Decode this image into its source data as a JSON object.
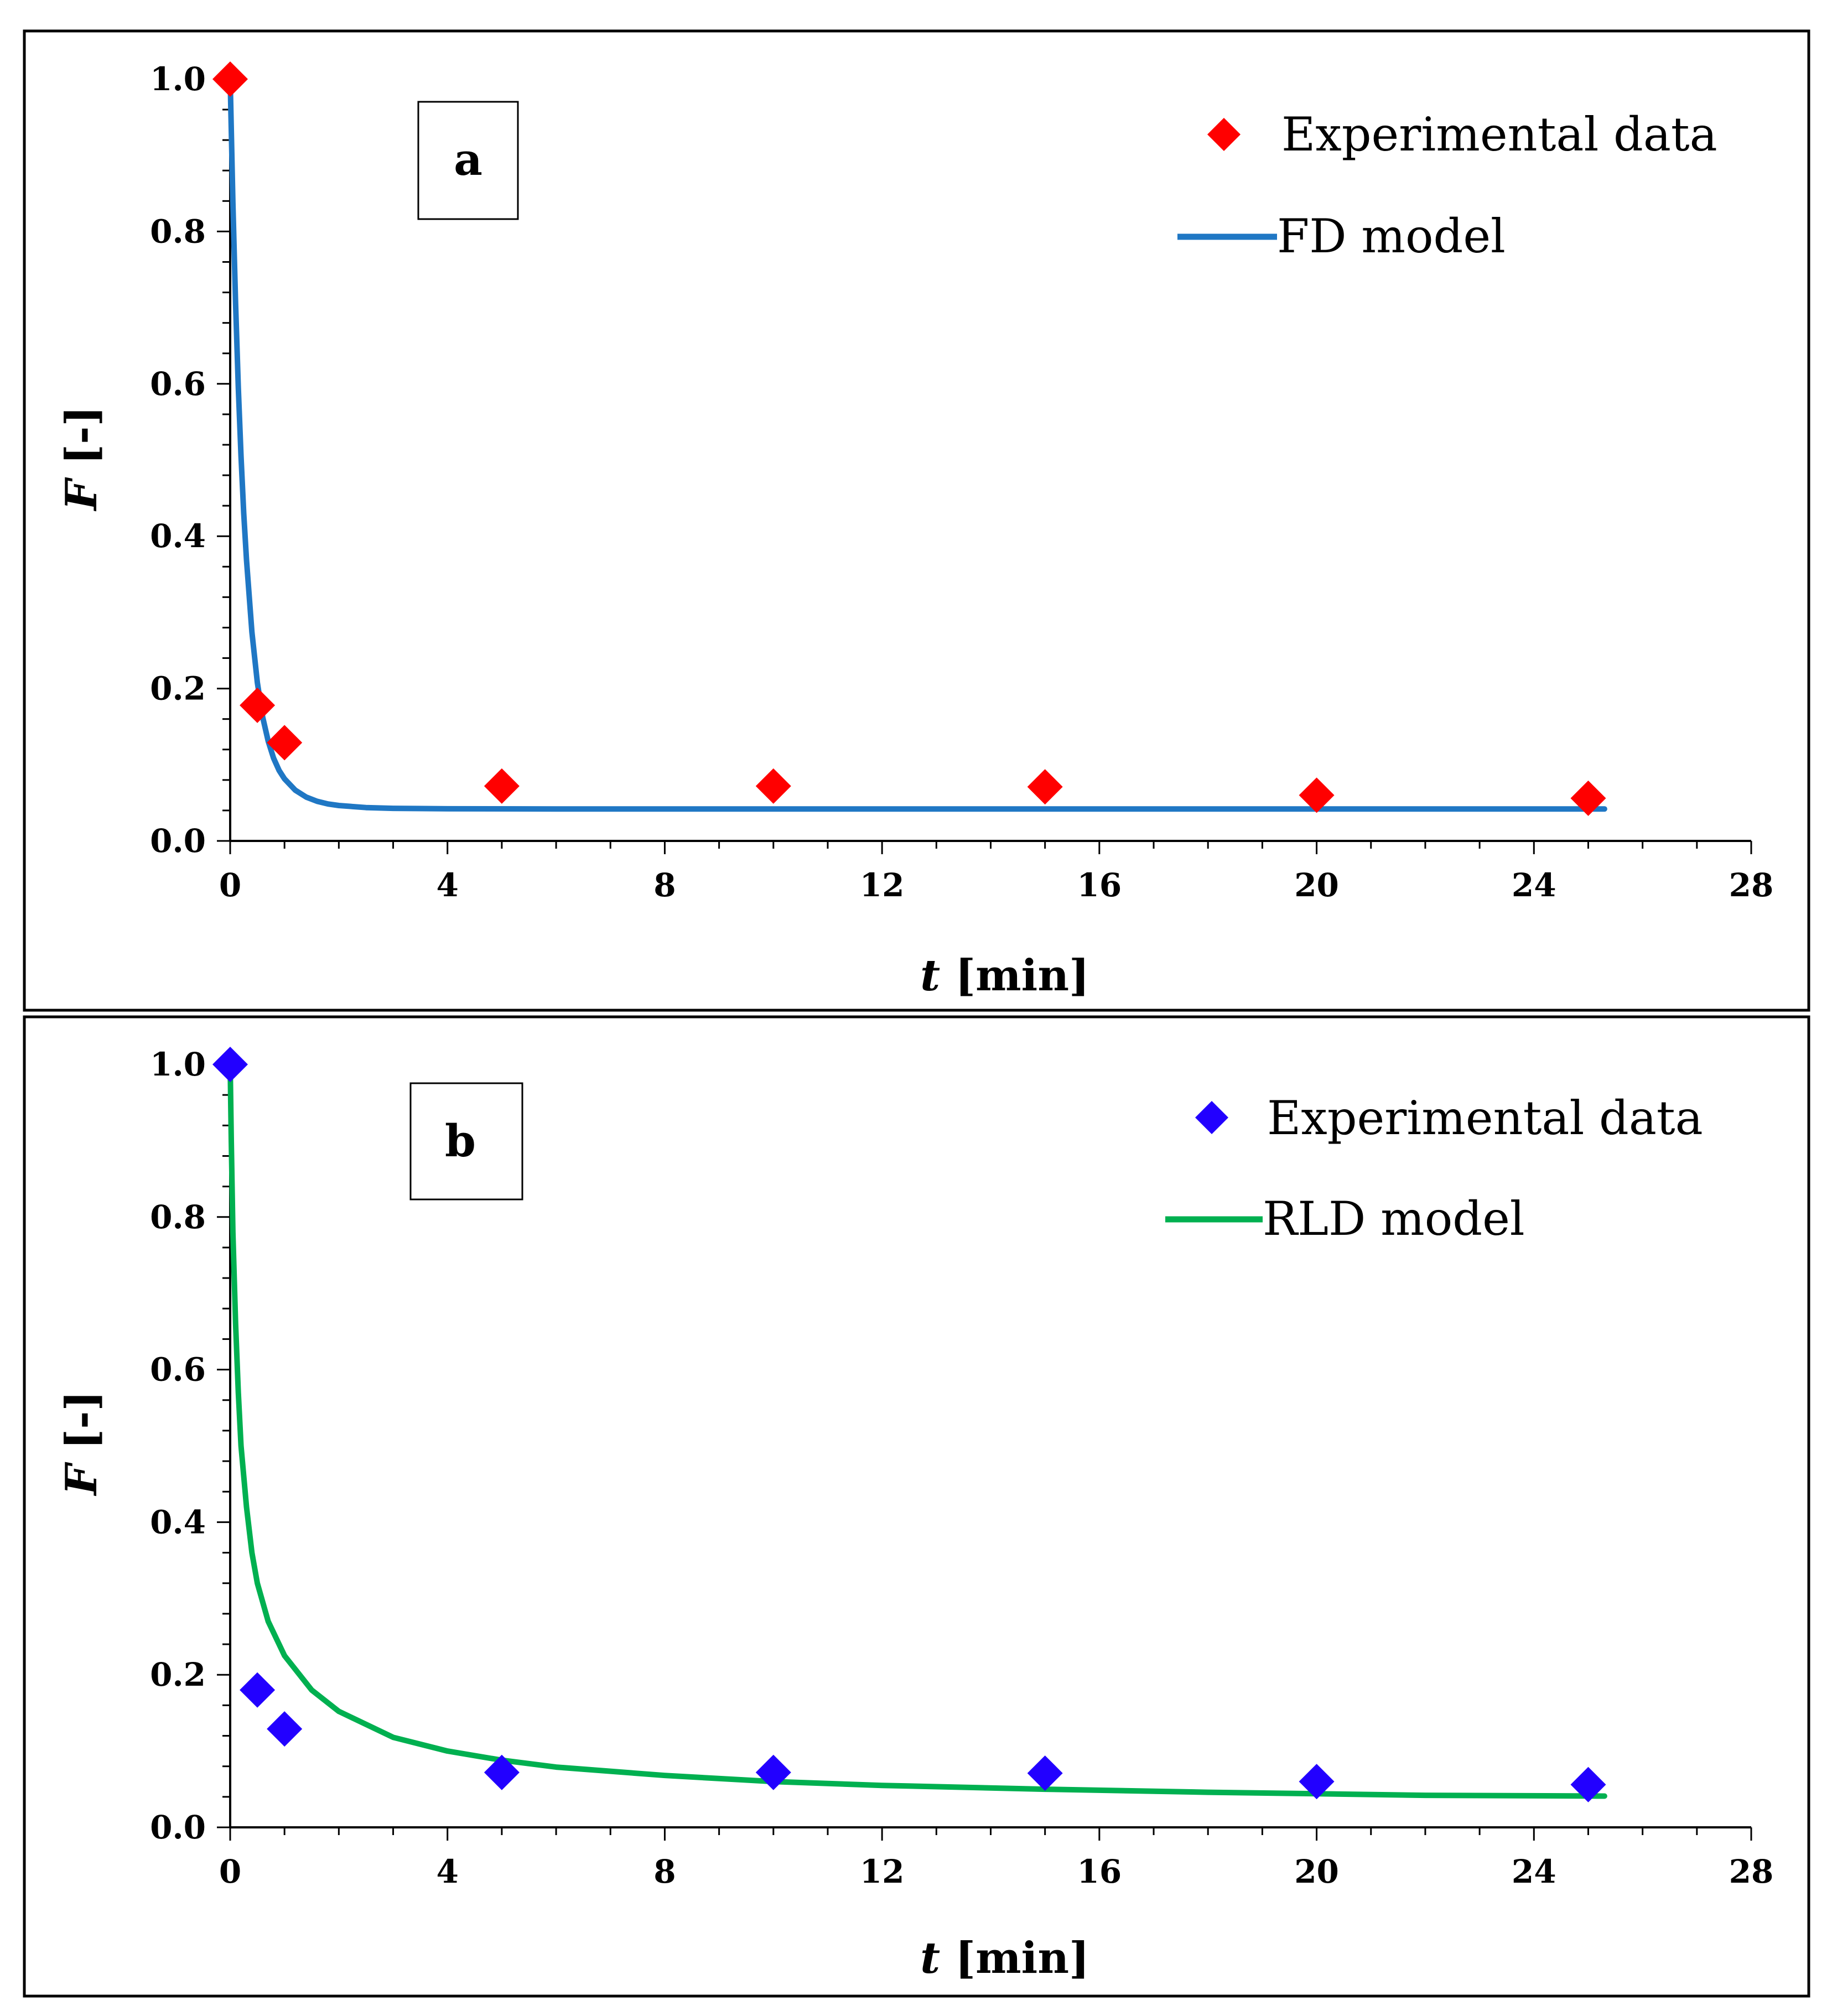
{
  "chart_data": [
    {
      "type": "scatter+line",
      "panel_label": "a",
      "xlabel_var": "t",
      "xlabel_unit": " [min]",
      "ylabel_var": "F",
      "ylabel_unit": " [-]",
      "xlim": [
        0,
        28
      ],
      "ylim": [
        0,
        1.0
      ],
      "x_ticks": [
        0,
        4,
        8,
        12,
        16,
        20,
        24,
        28
      ],
      "y_ticks": [
        0.0,
        0.2,
        0.4,
        0.6,
        0.8,
        1.0
      ],
      "x_tick_labels": [
        "0",
        "4",
        "8",
        "12",
        "16",
        "20",
        "24",
        "28"
      ],
      "y_tick_labels": [
        "0.0",
        "0.2",
        "0.4",
        "0.6",
        "0.8",
        "1.0"
      ],
      "legend": [
        "Experimental data",
        "FD model"
      ],
      "series": [
        {
          "name": "Experimental data",
          "kind": "markers",
          "marker": "diamond",
          "color": "#ff0000",
          "x": [
            0,
            0.5,
            1,
            5,
            10,
            15,
            20,
            25
          ],
          "y": [
            1.0,
            0.178,
            0.129,
            0.072,
            0.072,
            0.071,
            0.06,
            0.056
          ]
        },
        {
          "name": "FD model",
          "kind": "line",
          "color": "#1f77c4",
          "x": [
            0,
            0.05,
            0.1,
            0.15,
            0.2,
            0.25,
            0.3,
            0.4,
            0.5,
            0.6,
            0.7,
            0.8,
            0.9,
            1.0,
            1.2,
            1.4,
            1.6,
            1.8,
            2.0,
            2.5,
            3.0,
            4.0,
            6.0,
            10.0,
            15.0,
            20.0,
            25.3
          ],
          "y": [
            1.0,
            0.838,
            0.705,
            0.595,
            0.505,
            0.43,
            0.369,
            0.274,
            0.208,
            0.162,
            0.131,
            0.1085,
            0.0925,
            0.0815,
            0.0665,
            0.0575,
            0.052,
            0.0485,
            0.0465,
            0.0438,
            0.0428,
            0.0422,
            0.042,
            0.042,
            0.042,
            0.042,
            0.042
          ]
        }
      ]
    },
    {
      "type": "scatter+line",
      "panel_label": "b",
      "xlabel_var": "t",
      "xlabel_unit": " [min]",
      "ylabel_var": "F",
      "ylabel_unit": " [-]",
      "xlim": [
        0,
        28
      ],
      "ylim": [
        0,
        1.0
      ],
      "x_ticks": [
        0,
        4,
        8,
        12,
        16,
        20,
        24,
        28
      ],
      "y_ticks": [
        0.0,
        0.2,
        0.4,
        0.6,
        0.8,
        1.0
      ],
      "x_tick_labels": [
        "0",
        "4",
        "8",
        "12",
        "16",
        "20",
        "24",
        "28"
      ],
      "y_tick_labels": [
        "0.0",
        "0.2",
        "0.4",
        "0.6",
        "0.8",
        "1.0"
      ],
      "legend": [
        "Experimental data",
        "RLD model"
      ],
      "series": [
        {
          "name": "Experimental data",
          "kind": "markers",
          "marker": "diamond",
          "color": "#2200ff",
          "x": [
            0,
            0.5,
            1,
            5,
            10,
            15,
            20,
            25
          ],
          "y": [
            1.0,
            0.18,
            0.129,
            0.072,
            0.072,
            0.071,
            0.06,
            0.056
          ]
        },
        {
          "name": "RLD model",
          "kind": "line",
          "color": "#00b050",
          "x": [
            0,
            0.02,
            0.05,
            0.1,
            0.15,
            0.2,
            0.3,
            0.4,
            0.5,
            0.7,
            1.0,
            1.5,
            2.0,
            3.0,
            4.0,
            5.0,
            6.0,
            8.0,
            10.0,
            12.0,
            15.0,
            18.0,
            20.0,
            22.0,
            25.3
          ],
          "y": [
            1.0,
            0.9,
            0.78,
            0.66,
            0.57,
            0.5,
            0.42,
            0.36,
            0.32,
            0.27,
            0.225,
            0.18,
            0.152,
            0.118,
            0.1,
            0.088,
            0.079,
            0.068,
            0.06,
            0.055,
            0.05,
            0.046,
            0.044,
            0.042,
            0.041
          ]
        }
      ]
    }
  ]
}
